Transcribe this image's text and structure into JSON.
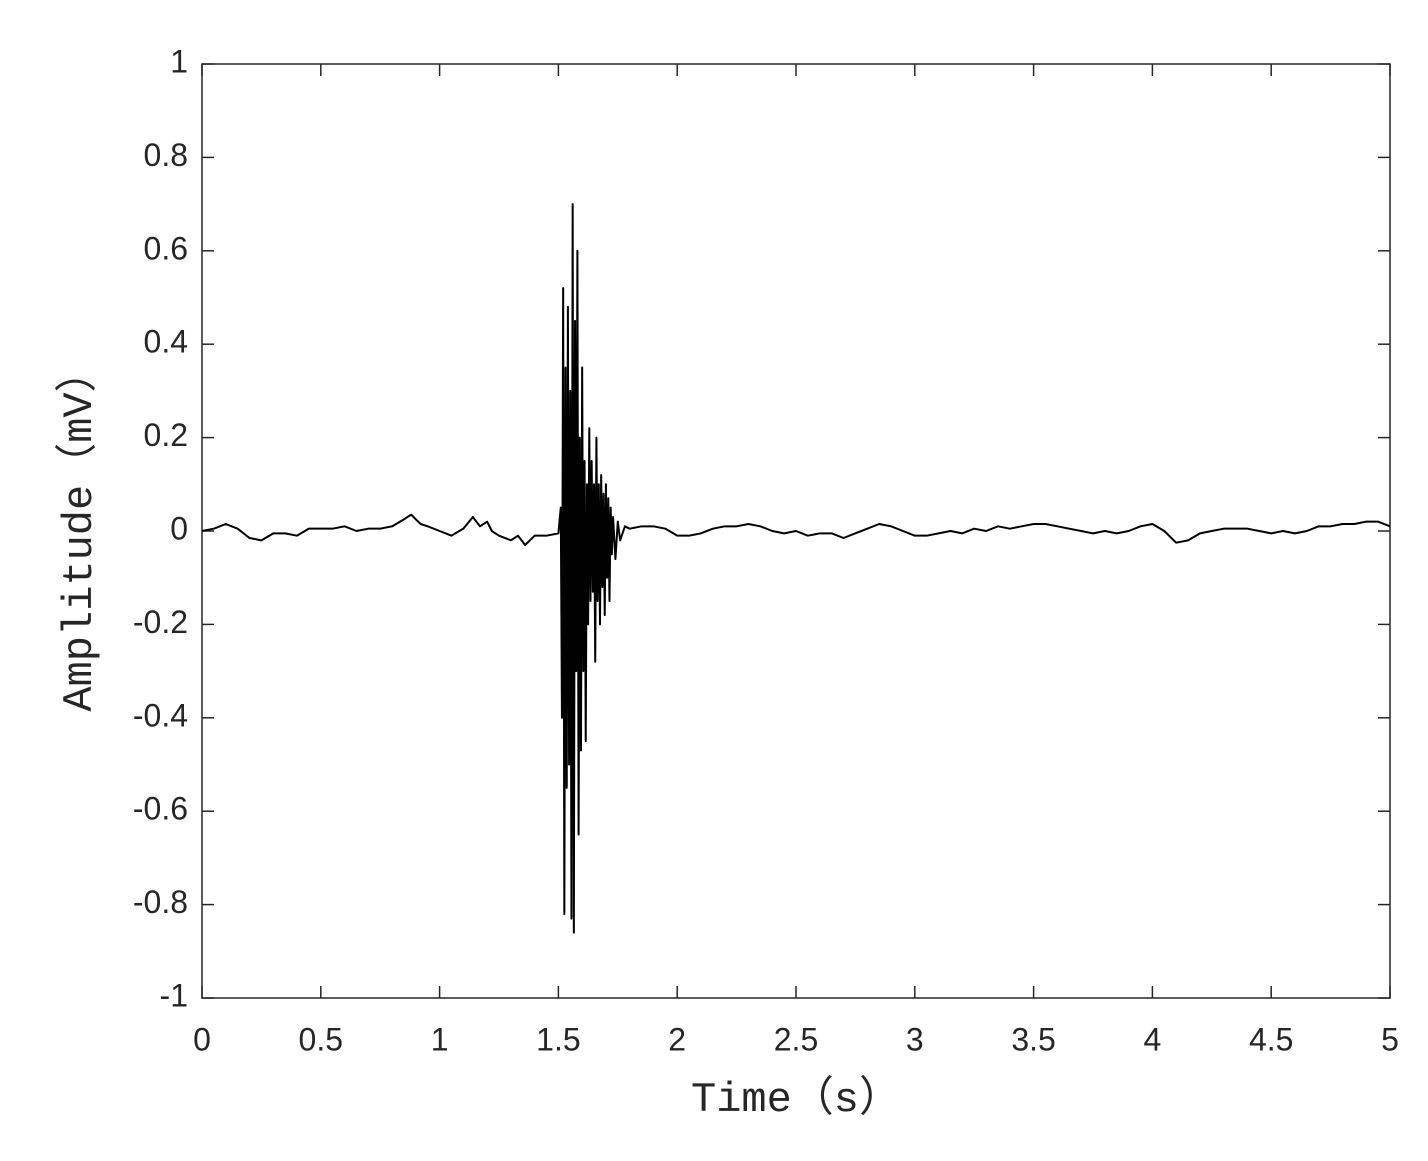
{
  "chart_data": {
    "type": "line",
    "xlabel": "Time（s）",
    "ylabel": "Amplitude（mV）",
    "xlim": [
      0,
      5
    ],
    "xticks": [
      0,
      0.5,
      1,
      1.5,
      2,
      2.5,
      3,
      3.5,
      4,
      4.5,
      5
    ],
    "ylim": [
      -1,
      1
    ],
    "yticks": [
      -1,
      -0.8,
      -0.6,
      -0.4,
      -0.2,
      0,
      0.2,
      0.4,
      0.6,
      0.8,
      1
    ],
    "grid": false,
    "series": [
      {
        "color": "#000000",
        "x": [
          0,
          0.05,
          0.1,
          0.15,
          0.2,
          0.25,
          0.3,
          0.35,
          0.4,
          0.45,
          0.5,
          0.55,
          0.6,
          0.65,
          0.7,
          0.75,
          0.8,
          0.85,
          0.88,
          0.92,
          0.95,
          1.0,
          1.05,
          1.1,
          1.14,
          1.17,
          1.2,
          1.22,
          1.25,
          1.3,
          1.33,
          1.36,
          1.4,
          1.45,
          1.5,
          1.51,
          1.515,
          1.52,
          1.525,
          1.53,
          1.535,
          1.54,
          1.545,
          1.55,
          1.555,
          1.56,
          1.565,
          1.57,
          1.575,
          1.58,
          1.585,
          1.59,
          1.595,
          1.6,
          1.605,
          1.61,
          1.615,
          1.62,
          1.625,
          1.63,
          1.635,
          1.64,
          1.645,
          1.65,
          1.655,
          1.66,
          1.665,
          1.67,
          1.675,
          1.68,
          1.685,
          1.69,
          1.695,
          1.7,
          1.705,
          1.71,
          1.715,
          1.72,
          1.725,
          1.73,
          1.74,
          1.75,
          1.76,
          1.78,
          1.8,
          1.85,
          1.9,
          1.95,
          2.0,
          2.05,
          2.1,
          2.15,
          2.2,
          2.25,
          2.3,
          2.35,
          2.4,
          2.45,
          2.5,
          2.55,
          2.6,
          2.65,
          2.7,
          2.75,
          2.8,
          2.85,
          2.9,
          2.95,
          3.0,
          3.05,
          3.1,
          3.15,
          3.2,
          3.25,
          3.3,
          3.35,
          3.4,
          3.45,
          3.5,
          3.55,
          3.6,
          3.65,
          3.7,
          3.75,
          3.8,
          3.85,
          3.9,
          3.95,
          4.0,
          4.05,
          4.1,
          4.15,
          4.2,
          4.25,
          4.3,
          4.35,
          4.4,
          4.45,
          4.5,
          4.55,
          4.6,
          4.65,
          4.7,
          4.75,
          4.8,
          4.85,
          4.9,
          4.95,
          5.0
        ],
        "values": [
          0,
          0.005,
          0.015,
          0.005,
          -0.015,
          -0.02,
          -0.005,
          -0.005,
          -0.01,
          0.005,
          0.005,
          0.005,
          0.01,
          0.0,
          0.005,
          0.005,
          0.01,
          0.025,
          0.035,
          0.015,
          0.01,
          0.0,
          -0.01,
          0.005,
          0.03,
          0.01,
          0.02,
          0.0,
          -0.01,
          -0.02,
          -0.01,
          -0.03,
          -0.01,
          -0.01,
          -0.005,
          0.05,
          -0.4,
          0.52,
          -0.82,
          0.35,
          -0.55,
          0.48,
          -0.5,
          0.3,
          -0.83,
          0.7,
          -0.86,
          0.45,
          -0.3,
          0.6,
          -0.65,
          0.2,
          -0.47,
          0.35,
          -0.3,
          0.15,
          -0.45,
          0.1,
          -0.2,
          0.22,
          -0.15,
          0.15,
          -0.13,
          0.1,
          -0.28,
          0.2,
          -0.15,
          0.1,
          -0.2,
          0.12,
          -0.12,
          0.08,
          -0.18,
          0.1,
          -0.1,
          0.07,
          -0.15,
          0.05,
          -0.05,
          0.03,
          -0.06,
          0.02,
          -0.02,
          0.01,
          0.005,
          0.01,
          0.01,
          0.005,
          -0.01,
          -0.01,
          -0.005,
          0.005,
          0.01,
          0.01,
          0.015,
          0.01,
          0.0,
          -0.005,
          0.0,
          -0.01,
          -0.005,
          -0.005,
          -0.015,
          -0.005,
          0.005,
          0.015,
          0.01,
          0.0,
          -0.01,
          -0.01,
          -0.005,
          0.0,
          -0.005,
          0.005,
          0.0,
          0.01,
          0.005,
          0.01,
          0.015,
          0.015,
          0.01,
          0.005,
          0.0,
          -0.005,
          0.0,
          -0.005,
          0.0,
          0.01,
          0.015,
          0.0,
          -0.025,
          -0.02,
          -0.005,
          0.0,
          0.005,
          0.005,
          0.005,
          0.0,
          -0.005,
          0.0,
          -0.005,
          0.0,
          0.01,
          0.01,
          0.015,
          0.015,
          0.02,
          0.02,
          0.01
        ]
      }
    ]
  }
}
